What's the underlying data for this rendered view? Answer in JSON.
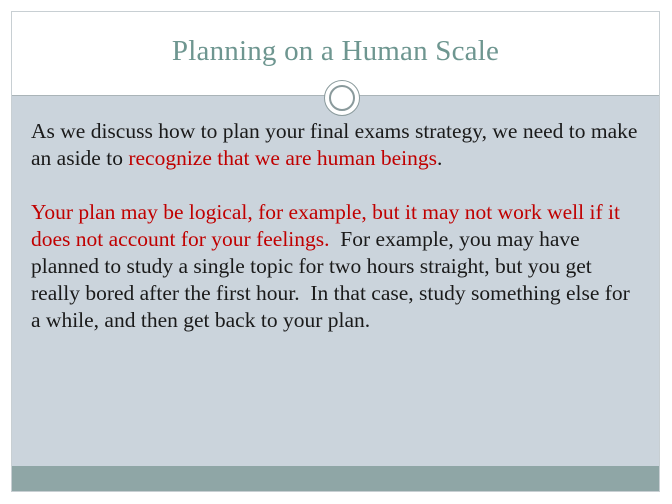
{
  "slide": {
    "title": "Planning on a Human Scale",
    "paragraph1": {
      "text_a": "As we discuss how to plan your final exams strategy, we need to make an aside to ",
      "highlight": "recognize that we are human beings",
      "text_b": "."
    },
    "paragraph2": {
      "highlight": "Your plan may be logical, for example, but it may not work well if it does not account for your feelings.",
      "text": "  For example, you may have planned to study a single topic for two hours straight, but you get really bored after the first hour.  In that case, study something else for a while, and then get back to your plan."
    }
  },
  "colors": {
    "title": "#6e9690",
    "highlight": "#c00000",
    "body_background": "#cbd4dc",
    "footer_bar": "#8fa6a6"
  },
  "icons": {
    "divider": "circle-ornament-icon"
  }
}
